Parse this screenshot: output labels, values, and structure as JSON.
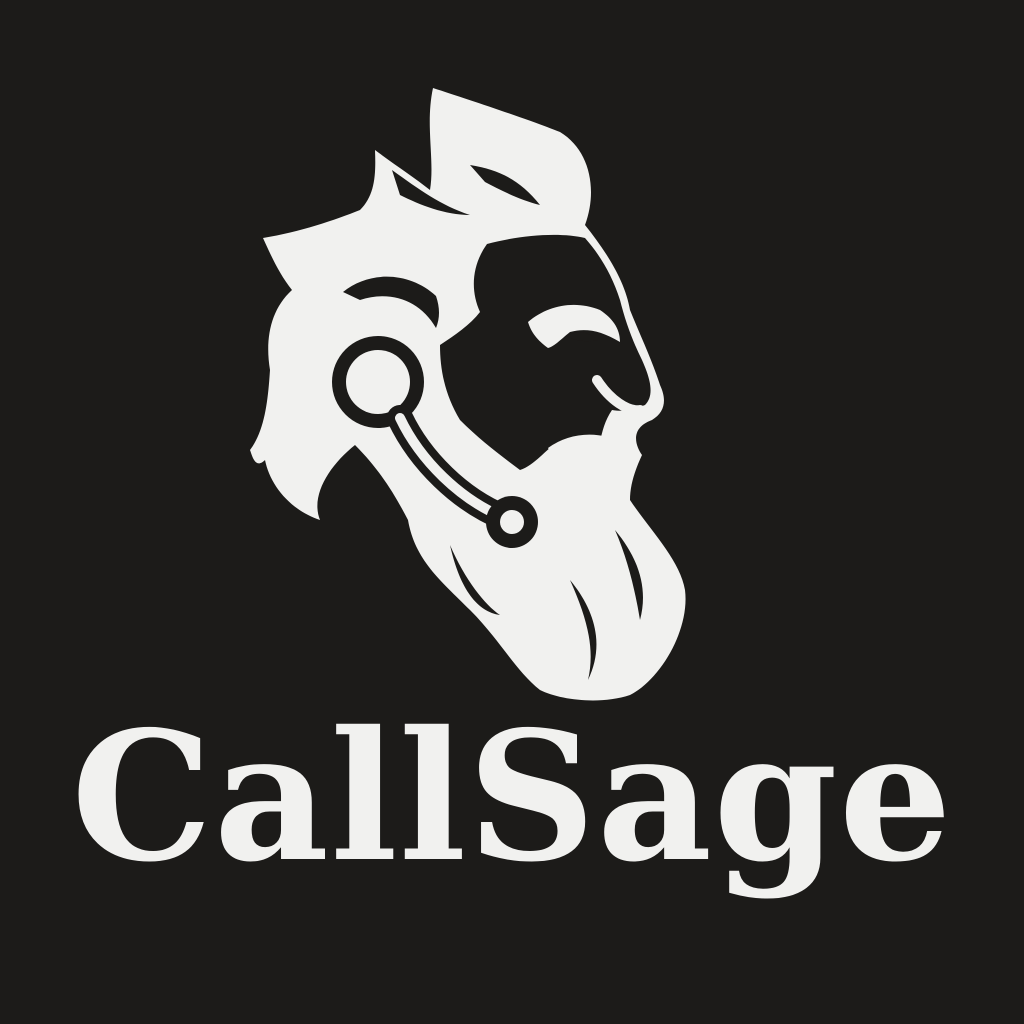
{
  "brand": {
    "name": "CallSage",
    "emblem_icon": "sage-with-headset-icon"
  },
  "colors": {
    "background": "#1c1b19",
    "foreground": "#f1f1ef"
  }
}
